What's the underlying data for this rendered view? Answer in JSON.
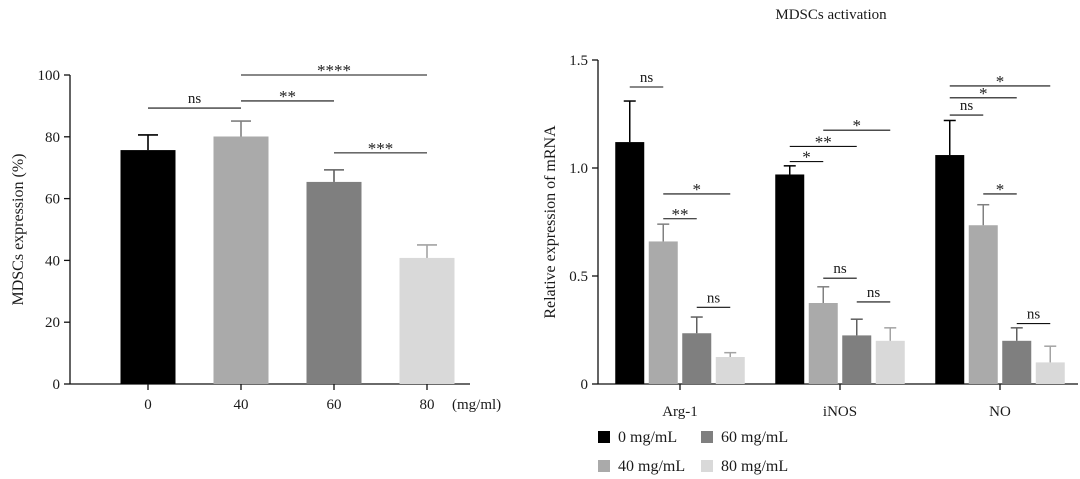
{
  "chart_data": [
    {
      "type": "bar",
      "xlabel": "(mg/ml)",
      "ylabel": "MDSCs expression (%)",
      "ylim": [
        0,
        100
      ],
      "yticks": [
        0,
        20,
        40,
        60,
        80,
        100
      ],
      "ytick_labels": [
        "0",
        "20",
        "40",
        "60",
        "80",
        "100"
      ],
      "categories": [
        "0",
        "40",
        "60",
        "80"
      ],
      "values": [
        75.7,
        80.1,
        65.4,
        40.8
      ],
      "errors": [
        4.9,
        5.0,
        3.9,
        4.2
      ],
      "colors": [
        "#000000",
        "#aaaaaa",
        "#7f7f7f",
        "#d9d9d9"
      ],
      "significance": [
        {
          "from": 0,
          "to": 1,
          "y": 89.3,
          "label": "ns"
        },
        {
          "from": 1,
          "to": 2,
          "y": 91.6,
          "label": "**"
        },
        {
          "from": 1,
          "to": 3,
          "y": 100,
          "label": "****"
        },
        {
          "from": 2,
          "to": 3,
          "y": 74.8,
          "label": "***"
        }
      ]
    },
    {
      "type": "bar",
      "title": "MDSCs activation",
      "ylabel": "Relative expression of mRNA",
      "ylim": [
        0,
        1.5
      ],
      "yticks": [
        0,
        0.5,
        1.0,
        1.5
      ],
      "ytick_labels": [
        "0",
        "0.5",
        "1.0",
        "1.5"
      ],
      "categories": [
        "Arg-1",
        "iNOS",
        "NO"
      ],
      "series": [
        {
          "name": "0 mg/mL",
          "color": "#000000",
          "values": [
            1.12,
            0.97,
            1.06
          ],
          "errors": [
            0.19,
            0.04,
            0.16
          ]
        },
        {
          "name": "40 mg/mL",
          "color": "#aaaaaa",
          "values": [
            0.66,
            0.375,
            0.735
          ],
          "errors": [
            0.08,
            0.075,
            0.095
          ]
        },
        {
          "name": "60 mg/mL",
          "color": "#7f7f7f",
          "values": [
            0.235,
            0.225,
            0.2
          ],
          "errors": [
            0.075,
            0.075,
            0.06
          ]
        },
        {
          "name": "80 mg/mL",
          "color": "#d9d9d9",
          "values": [
            0.125,
            0.2,
            0.1
          ],
          "errors": [
            0.02,
            0.06,
            0.075
          ]
        }
      ],
      "significance": [
        {
          "category": 0,
          "from": 0,
          "to": 1,
          "y": 1.375,
          "label": "ns"
        },
        {
          "category": 0,
          "from": 1,
          "to": 3,
          "y": 0.88,
          "label": "*"
        },
        {
          "category": 0,
          "from": 1,
          "to": 2,
          "y": 0.765,
          "label": "**"
        },
        {
          "category": 0,
          "from": 2,
          "to": 3,
          "y": 0.355,
          "label": "ns"
        },
        {
          "category": 1,
          "from": 0,
          "to": 1,
          "y": 1.03,
          "label": "*"
        },
        {
          "category": 1,
          "from": 0,
          "to": 2,
          "y": 1.1,
          "label": "**"
        },
        {
          "category": 1,
          "from": 1,
          "to": 3,
          "y": 1.175,
          "label": "*"
        },
        {
          "category": 1,
          "from": 1,
          "to": 2,
          "y": 0.49,
          "label": "ns"
        },
        {
          "category": 1,
          "from": 2,
          "to": 3,
          "y": 0.38,
          "label": "ns"
        },
        {
          "category": 2,
          "from": 0,
          "to": 3,
          "y": 1.38,
          "label": "*"
        },
        {
          "category": 2,
          "from": 0,
          "to": 2,
          "y": 1.325,
          "label": "*"
        },
        {
          "category": 2,
          "from": 0,
          "to": 1,
          "y": 1.245,
          "label": "ns"
        },
        {
          "category": 2,
          "from": 1,
          "to": 2,
          "y": 0.88,
          "label": "*"
        },
        {
          "category": 2,
          "from": 2,
          "to": 3,
          "y": 0.28,
          "label": "ns"
        }
      ]
    }
  ]
}
